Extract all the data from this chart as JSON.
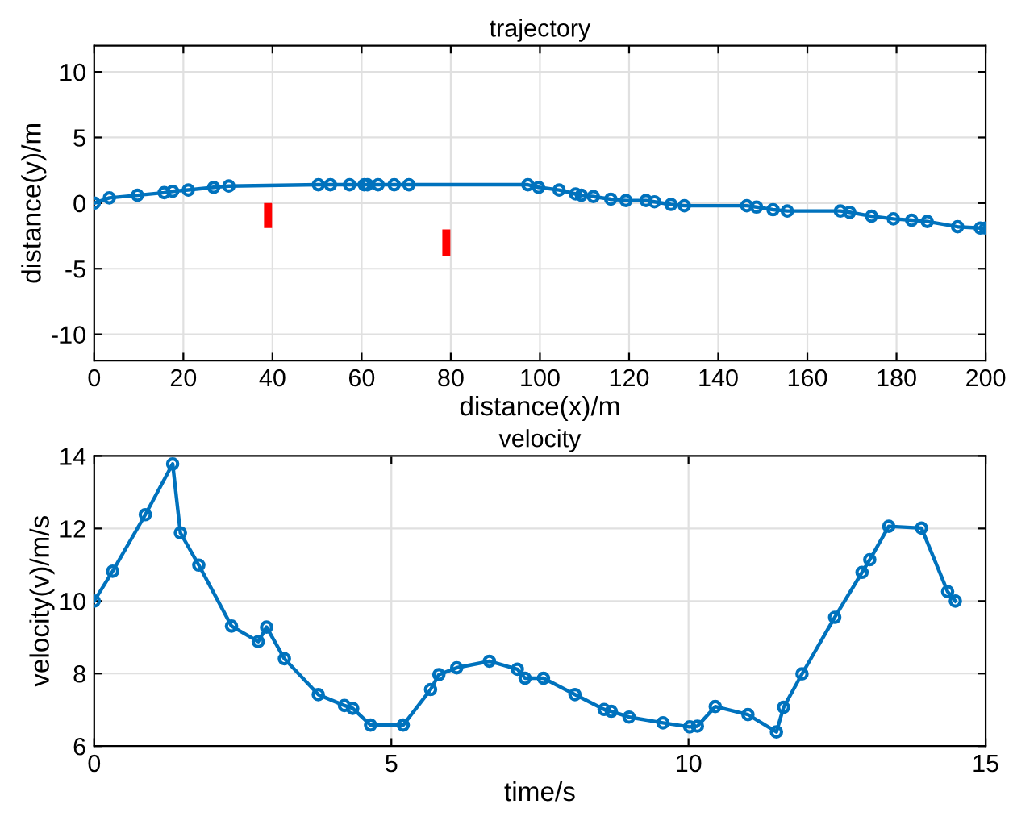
{
  "chart_data": [
    {
      "type": "line",
      "title": "trajectory",
      "xlabel": "distance(x)/m",
      "ylabel": "distance(y)/m",
      "xlim": [
        0,
        200
      ],
      "xticks": [
        0,
        20,
        40,
        60,
        80,
        100,
        120,
        140,
        160,
        180,
        200
      ],
      "ylim": [
        -12,
        12
      ],
      "yticks": [
        -10,
        -5,
        0,
        5,
        10
      ],
      "grid": true,
      "marker": "circle",
      "line_style": "solid",
      "legend": false,
      "series": [
        {
          "color": "#0072bd",
          "x": [
            0,
            3.4,
            9.7,
            15.7,
            17.6,
            21.1,
            26.8,
            30.2,
            50.3,
            53,
            57.3,
            60.6,
            61.3,
            63.7,
            67.3,
            70.6,
            97.3,
            99.7,
            104.3,
            108,
            109.3,
            112,
            115.9,
            119.3,
            123.8,
            125.7,
            129.4,
            132.4,
            146.4,
            148.6,
            152.3,
            155.5,
            167.4,
            169.5,
            174.4,
            179.3,
            183.4,
            186.9,
            193.7,
            198.8,
            200
          ],
          "values": [
            0,
            0.4,
            0.6,
            0.8,
            0.9,
            1.0,
            1.2,
            1.3,
            1.4,
            1.4,
            1.4,
            1.4,
            1.4,
            1.4,
            1.4,
            1.4,
            1.4,
            1.2,
            1.0,
            0.7,
            0.6,
            0.5,
            0.3,
            0.2,
            0.2,
            0.1,
            -0.1,
            -0.2,
            -0.2,
            -0.3,
            -0.5,
            -0.6,
            -0.6,
            -0.7,
            -1.0,
            -1.2,
            -1.3,
            -1.4,
            -1.8,
            -1.9,
            -1.9
          ]
        },
        {
          "type": "bar",
          "color": "#ff0000",
          "x": [
            39,
            79
          ],
          "base": [
            -1.9,
            -4
          ],
          "values": [
            1.9,
            2
          ]
        }
      ]
    },
    {
      "type": "line",
      "title": "velocity",
      "xlabel": "time/s",
      "ylabel": "velocity(v)/m/s",
      "xlim": [
        0,
        15
      ],
      "xticks": [
        0,
        5,
        10,
        15
      ],
      "ylim": [
        6,
        14
      ],
      "yticks": [
        6,
        8,
        10,
        12,
        14
      ],
      "grid": true,
      "marker": "circle",
      "line_style": "solid",
      "legend": false,
      "series": [
        {
          "color": "#0072bd",
          "x": [
            0,
            0.31,
            0.86,
            1.32,
            1.45,
            1.76,
            2.31,
            2.76,
            2.9,
            3.2,
            3.77,
            4.21,
            4.35,
            4.65,
            5.2,
            5.66,
            5.8,
            6.1,
            6.65,
            7.12,
            7.25,
            7.56,
            8.09,
            8.58,
            8.7,
            9.0,
            9.57,
            10.02,
            10.15,
            10.45,
            11.0,
            11.48,
            11.6,
            11.91,
            12.46,
            12.92,
            13.05,
            13.37,
            13.92,
            14.36,
            14.49
          ],
          "values": [
            10.0,
            10.82,
            12.38,
            13.78,
            11.88,
            10.99,
            9.31,
            8.88,
            9.28,
            8.41,
            7.42,
            7.12,
            7.04,
            6.58,
            6.58,
            7.56,
            7.97,
            8.16,
            8.34,
            8.12,
            7.87,
            7.87,
            7.42,
            7.01,
            6.96,
            6.8,
            6.64,
            6.53,
            6.55,
            7.09,
            6.87,
            6.39,
            7.07,
            7.99,
            9.55,
            10.79,
            11.14,
            12.06,
            12.01,
            10.26,
            10.0
          ]
        }
      ]
    }
  ]
}
